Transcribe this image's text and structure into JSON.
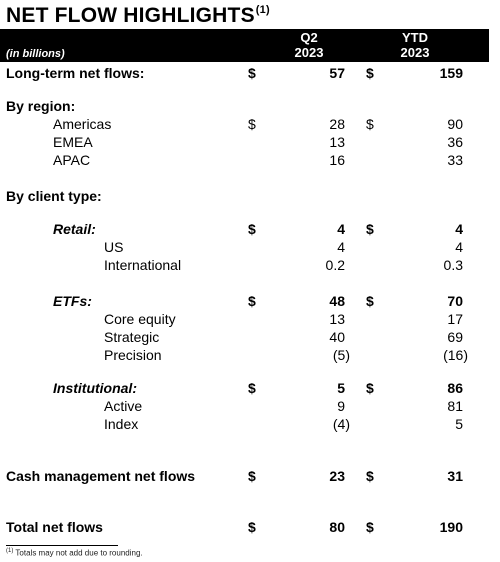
{
  "title": "NET FLOW HIGHLIGHTS",
  "title_note": "(1)",
  "header": {
    "units": "(in billions)",
    "col1": [
      "Q2",
      "2023"
    ],
    "col2": [
      "YTD",
      "2023"
    ]
  },
  "rows": {
    "long_term": {
      "label": "Long-term net flows:",
      "d1": "$",
      "q2": "57",
      "d2": "$",
      "ytd": "159"
    },
    "by_region": {
      "label": "By region:"
    },
    "americas": {
      "label": "Americas",
      "d1": "$",
      "q2": "28",
      "d2": "$",
      "ytd": "90"
    },
    "emea": {
      "label": "EMEA",
      "q2": "13",
      "ytd": "36"
    },
    "apac": {
      "label": "APAC",
      "q2": "16",
      "ytd": "33"
    },
    "by_client": {
      "label": "By client type:"
    },
    "retail": {
      "label": "Retail:",
      "d1": "$",
      "q2": "4",
      "d2": "$",
      "ytd": "4"
    },
    "us": {
      "label": "US",
      "q2": "4",
      "ytd": "4"
    },
    "international": {
      "label": "International",
      "q2": "0.2",
      "ytd": "0.3"
    },
    "etfs": {
      "label": "ETFs:",
      "d1": "$",
      "q2": "48",
      "d2": "$",
      "ytd": "70"
    },
    "core_equity": {
      "label": "Core equity",
      "q2": "13",
      "ytd": "17"
    },
    "strategic": {
      "label": "Strategic",
      "q2": "40",
      "ytd": "69"
    },
    "precision": {
      "label": "Precision",
      "q2": "(5)",
      "ytd": "(16)"
    },
    "institutional": {
      "label": "Institutional:",
      "d1": "$",
      "q2": "5",
      "d2": "$",
      "ytd": "86"
    },
    "active": {
      "label": "Active",
      "q2": "9",
      "ytd": "81"
    },
    "index": {
      "label": "Index",
      "q2": "(4)",
      "ytd": "5"
    },
    "cash_mgmt": {
      "label": "Cash management net flows",
      "d1": "$",
      "q2": "23",
      "d2": "$",
      "ytd": "31"
    },
    "total": {
      "label": "Total net flows",
      "d1": "$",
      "q2": "80",
      "d2": "$",
      "ytd": "190"
    }
  },
  "footnote": {
    "mark": "(1)",
    "text": "Totals may not add due to rounding."
  }
}
